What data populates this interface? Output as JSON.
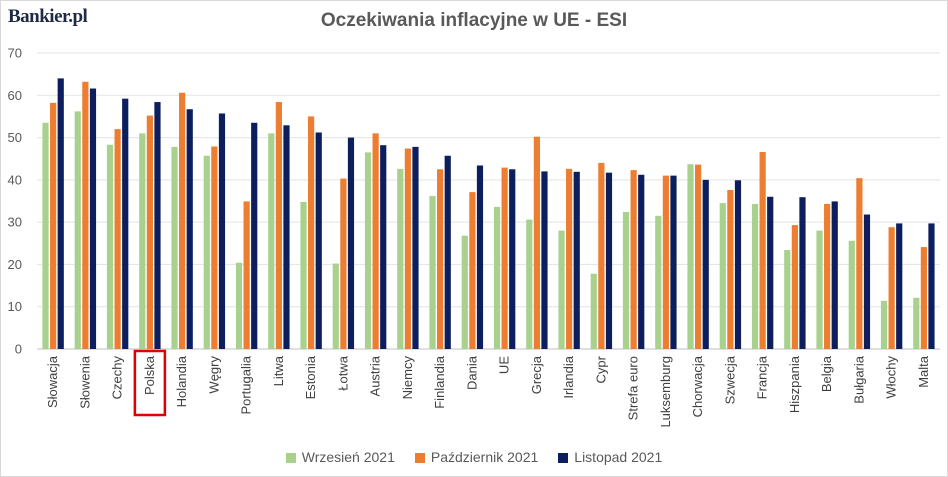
{
  "logo": "Bankier.pl",
  "chart_data": {
    "type": "bar",
    "title": "Oczekiwania inflacyjne w UE - ESI",
    "xlabel": "",
    "ylabel": "",
    "ylim": [
      0,
      70
    ],
    "yticks": [
      0,
      10,
      20,
      30,
      40,
      50,
      60,
      70
    ],
    "grid": true,
    "legend_position": "bottom",
    "highlighted_category": "Polska",
    "categories": [
      "Słowacja",
      "Słowenia",
      "Czechy",
      "Polska",
      "Holandia",
      "Węgry",
      "Portugalia",
      "Litwa",
      "Estonia",
      "Łotwa",
      "Austria",
      "Niemcy",
      "Finlandia",
      "Dania",
      "UE",
      "Grecja",
      "Irlandia",
      "Cypr",
      "Strefa euro",
      "Luksemburg",
      "Chorwacja",
      "Szwecja",
      "Francja",
      "Hiszpania",
      "Belgia",
      "Bułgaria",
      "Włochy",
      "Malta"
    ],
    "series": [
      {
        "name": "Wrzesień 2021",
        "color": "#a9d18e",
        "values": [
          53.5,
          56.2,
          48.3,
          51.0,
          47.8,
          45.7,
          20.4,
          51.0,
          34.8,
          20.2,
          46.5,
          42.6,
          36.2,
          26.8,
          33.6,
          30.6,
          28.0,
          17.8,
          32.4,
          31.5,
          43.7,
          34.5,
          34.3,
          23.4,
          28.0,
          25.6,
          11.4,
          12.1
        ]
      },
      {
        "name": "Październik 2021",
        "color": "#ed7d31",
        "values": [
          58.2,
          63.2,
          52.0,
          55.2,
          60.6,
          47.9,
          34.9,
          58.4,
          55.0,
          40.3,
          51.0,
          47.4,
          42.5,
          37.1,
          42.9,
          50.2,
          42.6,
          44.0,
          42.3,
          41.0,
          43.6,
          37.6,
          46.6,
          29.3,
          34.3,
          40.4,
          28.8,
          24.1
        ]
      },
      {
        "name": "Listopad 2021",
        "color": "#0c1e5e",
        "values": [
          64.0,
          61.6,
          59.2,
          58.4,
          56.7,
          55.7,
          53.5,
          52.9,
          51.2,
          50.0,
          48.2,
          47.8,
          45.7,
          43.4,
          42.5,
          42.0,
          41.9,
          41.7,
          41.2,
          41.0,
          40.0,
          39.9,
          36.0,
          35.9,
          34.9,
          31.8,
          29.7,
          29.7
        ]
      }
    ]
  }
}
